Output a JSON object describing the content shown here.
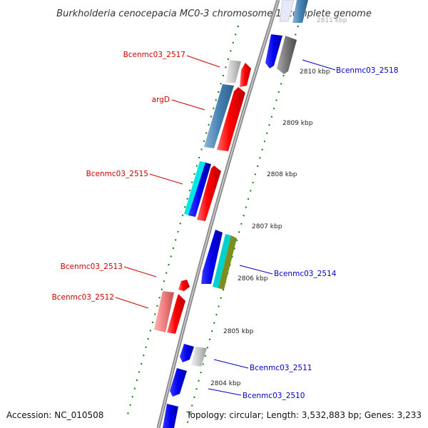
{
  "title": "Burkholderia cenocepacia MC0-3 chromosome 1, complete genome",
  "footer": {
    "accession": "Accession: NC_010508",
    "topology": "Topology: circular; Length: 3,532,883 bp; Genes: 3,233"
  },
  "ticks": [
    "2811 kbp",
    "2810 kbp",
    "2809 kbp",
    "2808 kbp",
    "2807 kbp",
    "2806 kbp",
    "2805 kbp",
    "2804 kbp"
  ],
  "gene_labels_left": [
    "Bcenmc03_2517",
    "argD",
    "Bcenmc03_2515",
    "Bcenmc03_2513",
    "Bcenmc03_2512"
  ],
  "gene_labels_right": [
    "Bcenmc03_2518",
    "Bcenmc03_2514",
    "Bcenmc03_2511",
    "Bcenmc03_2510"
  ],
  "colors": {
    "forward": "#ff0000",
    "reverse": "#0000ee",
    "steelblue": "#4682b4",
    "cyan": "#00e5e5",
    "olive": "#7a8f1e",
    "gray": "#c8c8c8",
    "darkgray": "#777777",
    "pink": "#f08080",
    "backbone": "#888888",
    "tickmark": "#0a7a0a"
  }
}
